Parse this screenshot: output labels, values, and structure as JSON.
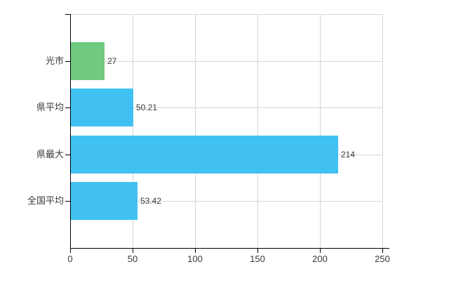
{
  "chart_data": {
    "type": "bar",
    "orientation": "horizontal",
    "title": "",
    "categories": [
      "光市",
      "県平均",
      "県最大",
      "全国平均"
    ],
    "values": [
      27,
      50.21,
      214,
      53.42
    ],
    "value_labels": [
      "27",
      "50.21",
      "214",
      "53.42"
    ],
    "series": [
      {
        "name": "値",
        "values": [
          27,
          50.21,
          214,
          53.42
        ]
      }
    ],
    "bar_colors": [
      "#6fc97e",
      "#41c1f1",
      "#41c1f1",
      "#41c1f1"
    ],
    "xlabel": "",
    "ylabel": "",
    "xlim": [
      0,
      250
    ],
    "xticks": [
      0,
      50,
      100,
      150,
      200,
      250
    ],
    "xtick_labels": [
      "0",
      "50",
      "100",
      "150",
      "200",
      "250"
    ],
    "grid": true,
    "legend_position": "none",
    "colors": {
      "highlight_bar": "#6fc97e",
      "default_bar": "#41c1f1",
      "axis": "#000000",
      "grid": "#d6d6d6",
      "text": "#3a3a3a",
      "background": "#ffffff"
    }
  }
}
